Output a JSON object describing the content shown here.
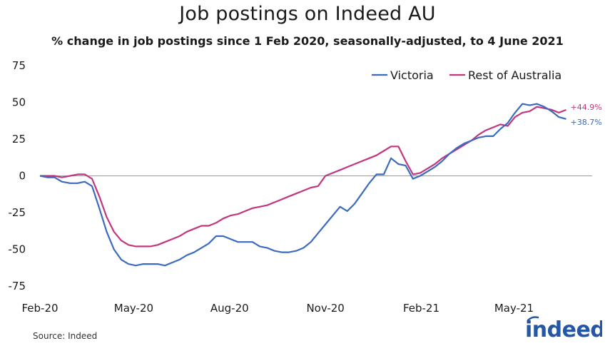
{
  "chart_data": {
    "type": "line",
    "title": "Job postings on Indeed AU",
    "subtitle": "% change in job postings since 1 Feb 2020, seasonally-adjusted, to 4 June 2021",
    "ylim": [
      -75,
      75
    ],
    "yticks": [
      75,
      50,
      25,
      0,
      -25,
      -50,
      -75
    ],
    "xlim": [
      "2020-02-01",
      "2021-07-15"
    ],
    "xticks": [
      {
        "date": "2020-02-01",
        "label": "Feb-20"
      },
      {
        "date": "2020-05-01",
        "label": "May-20"
      },
      {
        "date": "2020-08-01",
        "label": "Aug-20"
      },
      {
        "date": "2020-11-01",
        "label": "Nov-20"
      },
      {
        "date": "2021-02-01",
        "label": "Feb-21"
      },
      {
        "date": "2021-05-01",
        "label": "May-21"
      }
    ],
    "zero_line": true,
    "legend_position": "top-right",
    "series": [
      {
        "name": "Victoria",
        "color": "#3a6bbf",
        "end_label": "+38.7%",
        "points": [
          [
            "2020-02-01",
            0
          ],
          [
            "2020-02-08",
            -1
          ],
          [
            "2020-02-15",
            -1
          ],
          [
            "2020-02-22",
            -4
          ],
          [
            "2020-03-01",
            -5
          ],
          [
            "2020-03-08",
            -5
          ],
          [
            "2020-03-15",
            -4
          ],
          [
            "2020-03-22",
            -7
          ],
          [
            "2020-03-29",
            -22
          ],
          [
            "2020-04-05",
            -38
          ],
          [
            "2020-04-12",
            -50
          ],
          [
            "2020-04-19",
            -57
          ],
          [
            "2020-04-26",
            -60
          ],
          [
            "2020-05-03",
            -61
          ],
          [
            "2020-05-10",
            -60
          ],
          [
            "2020-05-17",
            -60
          ],
          [
            "2020-05-24",
            -60
          ],
          [
            "2020-05-31",
            -61
          ],
          [
            "2020-06-07",
            -59
          ],
          [
            "2020-06-14",
            -57
          ],
          [
            "2020-06-21",
            -54
          ],
          [
            "2020-06-28",
            -52
          ],
          [
            "2020-07-05",
            -49
          ],
          [
            "2020-07-12",
            -46
          ],
          [
            "2020-07-19",
            -41
          ],
          [
            "2020-07-26",
            -41
          ],
          [
            "2020-08-02",
            -43
          ],
          [
            "2020-08-09",
            -45
          ],
          [
            "2020-08-16",
            -45
          ],
          [
            "2020-08-23",
            -45
          ],
          [
            "2020-08-30",
            -48
          ],
          [
            "2020-09-06",
            -49
          ],
          [
            "2020-09-13",
            -51
          ],
          [
            "2020-09-20",
            -52
          ],
          [
            "2020-09-27",
            -52
          ],
          [
            "2020-10-04",
            -51
          ],
          [
            "2020-10-11",
            -49
          ],
          [
            "2020-10-18",
            -45
          ],
          [
            "2020-10-25",
            -39
          ],
          [
            "2020-11-01",
            -33
          ],
          [
            "2020-11-08",
            -27
          ],
          [
            "2020-11-15",
            -21
          ],
          [
            "2020-11-22",
            -24
          ],
          [
            "2020-11-29",
            -19
          ],
          [
            "2020-12-06",
            -12
          ],
          [
            "2020-12-13",
            -5
          ],
          [
            "2020-12-20",
            1
          ],
          [
            "2020-12-27",
            1
          ],
          [
            "2021-01-03",
            12
          ],
          [
            "2021-01-10",
            8
          ],
          [
            "2021-01-17",
            7
          ],
          [
            "2021-01-24",
            -2
          ],
          [
            "2021-01-31",
            0
          ],
          [
            "2021-02-07",
            3
          ],
          [
            "2021-02-14",
            6
          ],
          [
            "2021-02-21",
            10
          ],
          [
            "2021-02-28",
            15
          ],
          [
            "2021-03-07",
            19
          ],
          [
            "2021-03-14",
            22
          ],
          [
            "2021-03-21",
            24
          ],
          [
            "2021-03-28",
            26
          ],
          [
            "2021-04-04",
            27
          ],
          [
            "2021-04-11",
            27
          ],
          [
            "2021-04-18",
            32
          ],
          [
            "2021-04-25",
            36
          ],
          [
            "2021-05-02",
            43
          ],
          [
            "2021-05-09",
            49
          ],
          [
            "2021-05-16",
            48
          ],
          [
            "2021-05-23",
            49
          ],
          [
            "2021-05-30",
            47
          ],
          [
            "2021-06-06",
            44
          ],
          [
            "2021-06-13",
            40
          ],
          [
            "2021-06-20",
            38.7
          ]
        ]
      },
      {
        "name": "Rest of Australia",
        "color": "#c2367e",
        "end_label": "+44.9%",
        "points": [
          [
            "2020-02-01",
            0
          ],
          [
            "2020-02-08",
            0
          ],
          [
            "2020-02-15",
            0
          ],
          [
            "2020-02-22",
            -1
          ],
          [
            "2020-03-01",
            0
          ],
          [
            "2020-03-08",
            1
          ],
          [
            "2020-03-15",
            1
          ],
          [
            "2020-03-22",
            -2
          ],
          [
            "2020-03-29",
            -14
          ],
          [
            "2020-04-05",
            -28
          ],
          [
            "2020-04-12",
            -38
          ],
          [
            "2020-04-19",
            -44
          ],
          [
            "2020-04-26",
            -47
          ],
          [
            "2020-05-03",
            -48
          ],
          [
            "2020-05-10",
            -48
          ],
          [
            "2020-05-17",
            -48
          ],
          [
            "2020-05-24",
            -47
          ],
          [
            "2020-05-31",
            -45
          ],
          [
            "2020-06-07",
            -43
          ],
          [
            "2020-06-14",
            -41
          ],
          [
            "2020-06-21",
            -38
          ],
          [
            "2020-06-28",
            -36
          ],
          [
            "2020-07-05",
            -34
          ],
          [
            "2020-07-12",
            -34
          ],
          [
            "2020-07-19",
            -32
          ],
          [
            "2020-07-26",
            -29
          ],
          [
            "2020-08-02",
            -27
          ],
          [
            "2020-08-09",
            -26
          ],
          [
            "2020-08-16",
            -24
          ],
          [
            "2020-08-23",
            -22
          ],
          [
            "2020-08-30",
            -21
          ],
          [
            "2020-09-06",
            -20
          ],
          [
            "2020-09-13",
            -18
          ],
          [
            "2020-09-20",
            -16
          ],
          [
            "2020-09-27",
            -14
          ],
          [
            "2020-10-04",
            -12
          ],
          [
            "2020-10-11",
            -10
          ],
          [
            "2020-10-18",
            -8
          ],
          [
            "2020-10-25",
            -7
          ],
          [
            "2020-11-01",
            0
          ],
          [
            "2020-11-08",
            2
          ],
          [
            "2020-11-15",
            4
          ],
          [
            "2020-11-22",
            6
          ],
          [
            "2020-11-29",
            8
          ],
          [
            "2020-12-06",
            10
          ],
          [
            "2020-12-13",
            12
          ],
          [
            "2020-12-20",
            14
          ],
          [
            "2020-12-27",
            17
          ],
          [
            "2021-01-03",
            20
          ],
          [
            "2021-01-10",
            20
          ],
          [
            "2021-01-17",
            10
          ],
          [
            "2021-01-24",
            1
          ],
          [
            "2021-01-31",
            2
          ],
          [
            "2021-02-07",
            5
          ],
          [
            "2021-02-14",
            8
          ],
          [
            "2021-02-21",
            12
          ],
          [
            "2021-02-28",
            15
          ],
          [
            "2021-03-07",
            18
          ],
          [
            "2021-03-14",
            21
          ],
          [
            "2021-03-21",
            24
          ],
          [
            "2021-03-28",
            28
          ],
          [
            "2021-04-04",
            31
          ],
          [
            "2021-04-11",
            33
          ],
          [
            "2021-04-18",
            35
          ],
          [
            "2021-04-25",
            34
          ],
          [
            "2021-05-02",
            40
          ],
          [
            "2021-05-09",
            43
          ],
          [
            "2021-05-16",
            44
          ],
          [
            "2021-05-23",
            47
          ],
          [
            "2021-05-30",
            46
          ],
          [
            "2021-06-06",
            45
          ],
          [
            "2021-06-13",
            43
          ],
          [
            "2021-06-20",
            44.9
          ]
        ]
      }
    ]
  },
  "source": "Source: Indeed",
  "logo": {
    "text": "indeed",
    "color": "#2557a7"
  }
}
